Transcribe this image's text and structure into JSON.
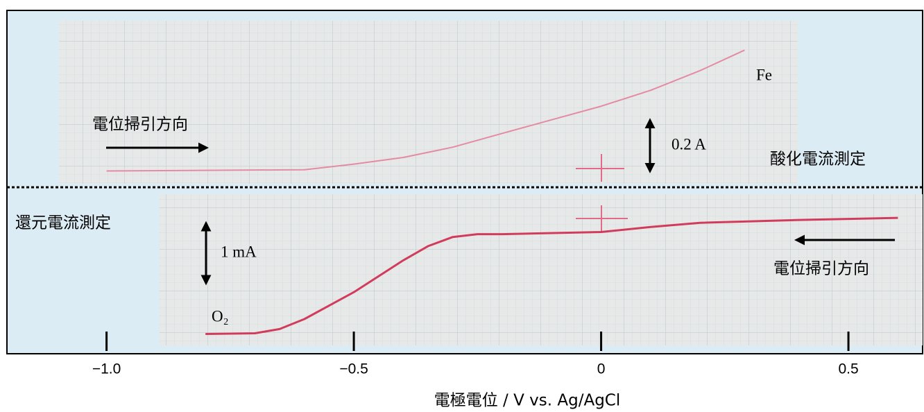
{
  "chart_data": [
    {
      "type": "line",
      "xlim": [
        -1.2,
        0.65
      ],
      "ylim": [
        -0.05,
        0.6
      ],
      "x": [
        -1.0,
        -0.6,
        -0.5,
        -0.4,
        -0.3,
        -0.2,
        -0.1,
        0,
        0.1,
        0.2,
        0.29
      ],
      "values": [
        0,
        0.005,
        0.027,
        0.053,
        0.093,
        0.147,
        0.2,
        0.253,
        0.315,
        0.392,
        0.472
      ],
      "color": "#e58aa3",
      "annotation": "Fe",
      "scale_bar": {
        "value": 0.2,
        "label": "0.2 A"
      },
      "direction_label": "電位掃引方向",
      "mode_label": "酸化電流測定"
    },
    {
      "type": "line",
      "xlim": [
        -1.2,
        0.65
      ],
      "ylim": [
        -2.2,
        0.45
      ],
      "x": [
        -0.8,
        -0.7,
        -0.65,
        -0.6,
        -0.5,
        -0.4,
        -0.35,
        -0.3,
        -0.25,
        -0.2,
        0,
        0.1,
        0.2,
        0.4,
        0.6
      ],
      "values": [
        -1.929,
        -1.918,
        -1.847,
        -1.682,
        -1.235,
        -0.706,
        -0.471,
        -0.318,
        -0.271,
        -0.271,
        -0.235,
        -0.153,
        -0.082,
        -0.035,
        0
      ],
      "color": "#d23c5c",
      "annotation": "O₂",
      "scale_bar": {
        "value": 1,
        "label": "1 mA"
      },
      "direction_label": "電位掃引方向",
      "mode_label": "還元電流測定",
      "xticks": [
        {
          "value": -1.0,
          "label": "−1.0"
        },
        {
          "value": -0.5,
          "label": "−0.5"
        },
        0,
        0.5
      ],
      "xlabel": "電極電位 / V vs. Ag/AgCl"
    }
  ]
}
